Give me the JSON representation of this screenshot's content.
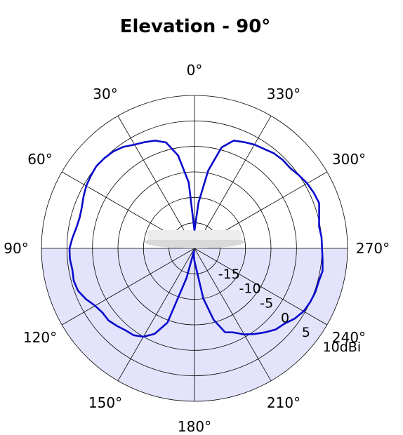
{
  "chart_data": {
    "type": "line",
    "projection": "polar",
    "title": "Elevation - 90°",
    "angle_direction": "counterclockwise",
    "zero_location": "top",
    "angle_ticks": [
      {
        "deg": 0,
        "label": "0°"
      },
      {
        "deg": 30,
        "label": "30°"
      },
      {
        "deg": 60,
        "label": "60°"
      },
      {
        "deg": 90,
        "label": "90°"
      },
      {
        "deg": 120,
        "label": "120°"
      },
      {
        "deg": 150,
        "label": "150°"
      },
      {
        "deg": 180,
        "label": "180°"
      },
      {
        "deg": 210,
        "label": "210°"
      },
      {
        "deg": 240,
        "label": "240°"
      },
      {
        "deg": 270,
        "label": "270°"
      },
      {
        "deg": 300,
        "label": "300°"
      },
      {
        "deg": 330,
        "label": "330°"
      }
    ],
    "radial_ticks": [
      {
        "value": -15,
        "label": "-15"
      },
      {
        "value": -10,
        "label": "-10"
      },
      {
        "value": -5,
        "label": "-5"
      },
      {
        "value": 0,
        "label": "0"
      },
      {
        "value": 5,
        "label": "5"
      },
      {
        "value": 10,
        "label": "10dBi"
      }
    ],
    "rlim": [
      -20,
      10
    ],
    "grid": true,
    "lower_hemisphere_shaded": true,
    "colors": {
      "series": "#0a0acc",
      "shade": "#e3e3fb",
      "grid": "#000000"
    },
    "series": [
      {
        "angle_deg": [
          0,
          5,
          10,
          15,
          20,
          25,
          30,
          35,
          40,
          45,
          50,
          55,
          60,
          65,
          70,
          75,
          80,
          85,
          90,
          95,
          100,
          105,
          110,
          115,
          120,
          125,
          130,
          135,
          140,
          145,
          150,
          155,
          160,
          165,
          170,
          175,
          180,
          185,
          190,
          195,
          200,
          205,
          210,
          215,
          220,
          225,
          230,
          235,
          240,
          245,
          250,
          255,
          260,
          265,
          270,
          275,
          280,
          285,
          290,
          295,
          300,
          305,
          310,
          315,
          320,
          325,
          330,
          335,
          340,
          345,
          350,
          355,
          360
        ],
        "gain_dbi": [
          -16.5,
          -7.0,
          -1.5,
          1.5,
          2.5,
          3.0,
          3.5,
          4.3,
          4.8,
          5.0,
          5.1,
          4.8,
          4.5,
          4.0,
          3.5,
          3.3,
          3.5,
          4.0,
          4.5,
          4.5,
          4.3,
          4.5,
          4.3,
          3.5,
          2.5,
          2.0,
          2.0,
          1.5,
          1.0,
          0.8,
          0.0,
          -1.5,
          -4.5,
          -14.0,
          -19.5,
          -18.5,
          -17.5,
          -16.0,
          -10.0,
          -5.5,
          -2.5,
          -1.8,
          -0.5,
          0.5,
          1.5,
          2.5,
          3.0,
          4.0,
          4.7,
          5.0,
          5.2,
          5.2,
          5.5,
          5.2,
          5.0,
          5.0,
          4.8,
          5.3,
          6.0,
          5.8,
          5.5,
          5.0,
          4.5,
          4.5,
          4.3,
          3.8,
          3.5,
          3.0,
          2.5,
          0.5,
          -4.5,
          -11.0,
          -16.5
        ]
      }
    ]
  }
}
